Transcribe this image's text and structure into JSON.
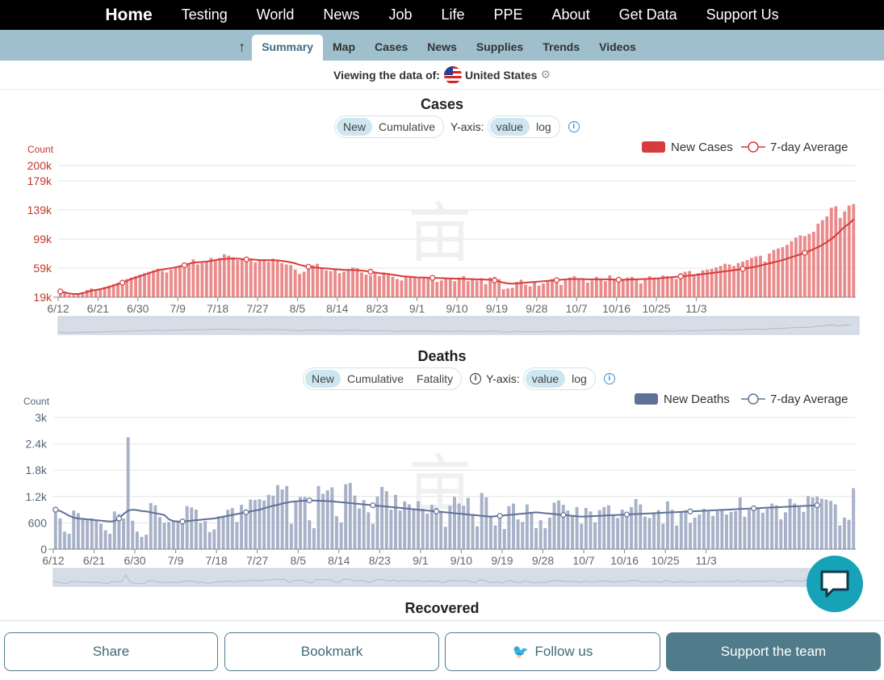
{
  "topnav": {
    "items": [
      "Home",
      "Testing",
      "World",
      "News",
      "Job",
      "Life",
      "PPE",
      "About",
      "Get Data",
      "Support Us"
    ]
  },
  "subnav": {
    "items": [
      "Summary",
      "Map",
      "Cases",
      "News",
      "Supplies",
      "Trends",
      "Videos"
    ],
    "active": "Summary"
  },
  "viewbar": {
    "label": "Viewing the data of:",
    "country": "United States"
  },
  "cases": {
    "title": "Cases",
    "mode_options": [
      "New",
      "Cumulative"
    ],
    "yaxis_label": "Y-axis:",
    "scale_options": [
      "value",
      "log"
    ],
    "count_label": "Count",
    "legend_bar": "New Cases",
    "legend_line": "7-day Average",
    "color": "#d63c3c"
  },
  "deaths": {
    "title": "Deaths",
    "mode_options": [
      "New",
      "Cumulative",
      "Fatality"
    ],
    "yaxis_label": "Y-axis:",
    "scale_options": [
      "value",
      "log"
    ],
    "count_label": "Count",
    "legend_bar": "New Deaths",
    "legend_line": "7-day Average",
    "color": "#5f7196"
  },
  "recovered": {
    "title": "Recovered"
  },
  "bottom": {
    "share": "Share",
    "bookmark": "Bookmark",
    "follow": "Follow us",
    "support": "Support the team"
  },
  "chart_data": [
    {
      "type": "bar",
      "title": "Cases",
      "ylabel": "Count",
      "yticks": [
        19000,
        59000,
        99000,
        139000,
        179000,
        200000
      ],
      "ytick_labels": [
        "19k",
        "59k",
        "99k",
        "139k",
        "179k",
        "200k"
      ],
      "ylim": [
        19000,
        200000
      ],
      "xtick_labels": [
        "6/12",
        "6/21",
        "6/30",
        "7/9",
        "7/18",
        "7/27",
        "8/5",
        "8/14",
        "8/23",
        "9/1",
        "9/10",
        "9/19",
        "9/28",
        "10/7",
        "10/16",
        "10/25",
        "11/3"
      ],
      "x_start": "6/12",
      "values": [
        28000,
        25000,
        22000,
        22000,
        24000,
        26000,
        29000,
        31000,
        29000,
        31000,
        33000,
        35000,
        37000,
        39000,
        41000,
        44000,
        46000,
        48000,
        50000,
        52000,
        54000,
        56000,
        58000,
        55000,
        53000,
        57000,
        60000,
        61000,
        63000,
        66000,
        71000,
        64000,
        66000,
        69000,
        73000,
        71000,
        73000,
        78000,
        76000,
        74000,
        70000,
        72000,
        68000,
        71000,
        67000,
        69000,
        71000,
        68000,
        72000,
        70000,
        66000,
        64000,
        63000,
        57000,
        51000,
        54000,
        58000,
        63000,
        65000,
        60000,
        56000,
        55000,
        58000,
        52000,
        54000,
        57000,
        60000,
        59000,
        53000,
        50000,
        49000,
        52000,
        48000,
        53000,
        51000,
        47000,
        44000,
        42000,
        48000,
        47000,
        46000,
        45000,
        47000,
        46000,
        43000,
        40000,
        42000,
        45000,
        44000,
        41000,
        46000,
        48000,
        41000,
        44000,
        42000,
        45000,
        37000,
        46000,
        47000,
        44000,
        30000,
        31000,
        32000,
        40000,
        43000,
        36000,
        34000,
        39000,
        35000,
        38000,
        42000,
        44000,
        39000,
        36000,
        43000,
        46000,
        48000,
        45000,
        44000,
        39000,
        42000,
        47000,
        43000,
        41000,
        49000,
        44000,
        40000,
        43000,
        46000,
        47000,
        44000,
        38000,
        45000,
        48000,
        46000,
        45000,
        49000,
        48000,
        46000,
        44000,
        52000,
        54000,
        55000,
        50000,
        52000,
        56000,
        57000,
        58000,
        60000,
        62000,
        65000,
        64000,
        62000,
        66000,
        68000,
        70000,
        73000,
        75000,
        76000,
        68000,
        79000,
        84000,
        86000,
        88000,
        91000,
        96000,
        101000,
        104000,
        103000,
        106000,
        109000,
        120000,
        125000,
        130000,
        142000,
        144000,
        128000,
        137000,
        145000,
        147000
      ],
      "avg": [
        27000,
        25500,
        24000,
        23500,
        23500,
        24500,
        26000,
        28000,
        29000,
        30000,
        31500,
        33000,
        35000,
        37000,
        39000,
        41500,
        44000,
        46000,
        48000,
        50000,
        52000,
        54000,
        56000,
        57000,
        58000,
        59000,
        60000,
        61500,
        63000,
        65000,
        66500,
        67000,
        67500,
        68000,
        69000,
        70000,
        71000,
        71500,
        72000,
        72000,
        72000,
        71500,
        71000,
        71000,
        70500,
        70000,
        70000,
        70000,
        70000,
        69500,
        69000,
        68000,
        67000,
        65500,
        63500,
        62000,
        61000,
        60000,
        59500,
        59000,
        58500,
        58000,
        57500,
        57000,
        56500,
        56500,
        56500,
        56000,
        55500,
        55000,
        54000,
        53000,
        52000,
        51500,
        51000,
        50000,
        49000,
        48000,
        47500,
        47000,
        46500,
        46000,
        46000,
        45800,
        45600,
        45400,
        45200,
        45000,
        44800,
        44600,
        44400,
        44200,
        44000,
        43800,
        43600,
        43400,
        43200,
        43000,
        42000,
        40500,
        39000,
        38000,
        37500,
        38000,
        38500,
        39000,
        39500,
        40000,
        40500,
        41000,
        41500,
        42000,
        42500,
        43000,
        43500,
        44000,
        44000,
        44000,
        44000,
        43500,
        43500,
        43500,
        43500,
        43500,
        43500,
        43300,
        43000,
        43000,
        43200,
        43400,
        43600,
        43800,
        44000,
        44300,
        44600,
        45000,
        45500,
        46000,
        46500,
        47000,
        47500,
        48000,
        48700,
        49400,
        50100,
        50800,
        51500,
        52200,
        53000,
        53800,
        54600,
        55400,
        56200,
        57000,
        58000,
        59000,
        60000,
        61000,
        62500,
        64000,
        65500,
        67000,
        68500,
        70000,
        72000,
        74000,
        76000,
        78000,
        80000,
        82500,
        85000,
        88000,
        91000,
        95000,
        99000,
        104000,
        110000,
        116000,
        120000,
        126000
      ]
    },
    {
      "type": "bar",
      "title": "Deaths",
      "ylabel": "Count",
      "yticks": [
        0,
        600,
        1200,
        1800,
        2400,
        3000
      ],
      "ytick_labels": [
        "0",
        "600",
        "1.2k",
        "1.8k",
        "2.4k",
        "3k"
      ],
      "ylim": [
        0,
        3000
      ],
      "xtick_labels": [
        "6/12",
        "6/21",
        "6/30",
        "7/9",
        "7/18",
        "7/27",
        "8/5",
        "8/14",
        "8/23",
        "9/1",
        "9/10",
        "9/19",
        "9/28",
        "10/7",
        "10/16",
        "10/25",
        "11/3"
      ],
      "x_start": "6/12",
      "values": [
        950,
        700,
        400,
        350,
        880,
        820,
        700,
        680,
        700,
        650,
        580,
        430,
        350,
        860,
        800,
        700,
        2550,
        650,
        400,
        280,
        330,
        1050,
        1000,
        730,
        600,
        620,
        630,
        640,
        680,
        980,
        950,
        900,
        600,
        640,
        390,
        450,
        750,
        760,
        900,
        940,
        620,
        1010,
        820,
        1130,
        1120,
        1140,
        1110,
        1240,
        1220,
        1460,
        1360,
        1440,
        580,
        1090,
        1190,
        1190,
        660,
        480,
        1440,
        1260,
        1340,
        1410,
        750,
        610,
        1480,
        1510,
        1220,
        930,
        1120,
        840,
        580,
        1200,
        1420,
        1320,
        900,
        1240,
        880,
        1090,
        1020,
        900,
        1090,
        920,
        810,
        1010,
        940,
        870,
        510,
        990,
        1190,
        1040,
        990,
        1170,
        800,
        520,
        1280,
        1180,
        750,
        540,
        760,
        460,
        980,
        1040,
        680,
        620,
        1020,
        820,
        480,
        660,
        480,
        720,
        1060,
        1110,
        1010,
        880,
        760,
        960,
        580,
        940,
        860,
        610,
        890,
        960,
        1000,
        780,
        710,
        900,
        830,
        960,
        1140,
        1020,
        740,
        710,
        820,
        890,
        580,
        1090,
        900,
        540,
        840,
        890,
        600,
        720,
        790,
        920,
        860,
        760,
        870,
        910,
        790,
        850,
        870,
        1180,
        740,
        900,
        920,
        950,
        830,
        920,
        1040,
        1000,
        680,
        840,
        1150,
        1040,
        960,
        850,
        1210,
        1180,
        1200,
        1150,
        1130,
        1100,
        1020,
        540,
        720,
        670,
        1390
      ],
      "avg": [
        900,
        870,
        820,
        760,
        720,
        700,
        690,
        680,
        670,
        660,
        650,
        640,
        630,
        640,
        700,
        800,
        880,
        900,
        890,
        870,
        860,
        840,
        820,
        800,
        780,
        680,
        640,
        630,
        630,
        640,
        650,
        660,
        670,
        680,
        690,
        700,
        720,
        740,
        760,
        780,
        800,
        820,
        840,
        860,
        880,
        900,
        930,
        960,
        990,
        1010,
        1040,
        1060,
        1080,
        1090,
        1100,
        1105,
        1110,
        1110,
        1105,
        1100,
        1095,
        1090,
        1080,
        1070,
        1060,
        1050,
        1040,
        1030,
        1020,
        1010,
        1000,
        990,
        980,
        970,
        960,
        950,
        940,
        930,
        920,
        910,
        900,
        890,
        880,
        870,
        860,
        850,
        840,
        830,
        820,
        810,
        800,
        790,
        780,
        770,
        760,
        750,
        740,
        750,
        760,
        770,
        780,
        790,
        800,
        810,
        820,
        830,
        840,
        830,
        820,
        810,
        800,
        790,
        780,
        770,
        760,
        750,
        740,
        745,
        750,
        755,
        760,
        765,
        770,
        775,
        780,
        785,
        790,
        795,
        800,
        805,
        810,
        815,
        820,
        825,
        830,
        835,
        840,
        845,
        850,
        855,
        860,
        865,
        870,
        875,
        880,
        885,
        890,
        895,
        900,
        905,
        910,
        915,
        920,
        925,
        930,
        935,
        940,
        945,
        950,
        955,
        960,
        965,
        970,
        975,
        980,
        985,
        990,
        995,
        1000
      ]
    }
  ]
}
